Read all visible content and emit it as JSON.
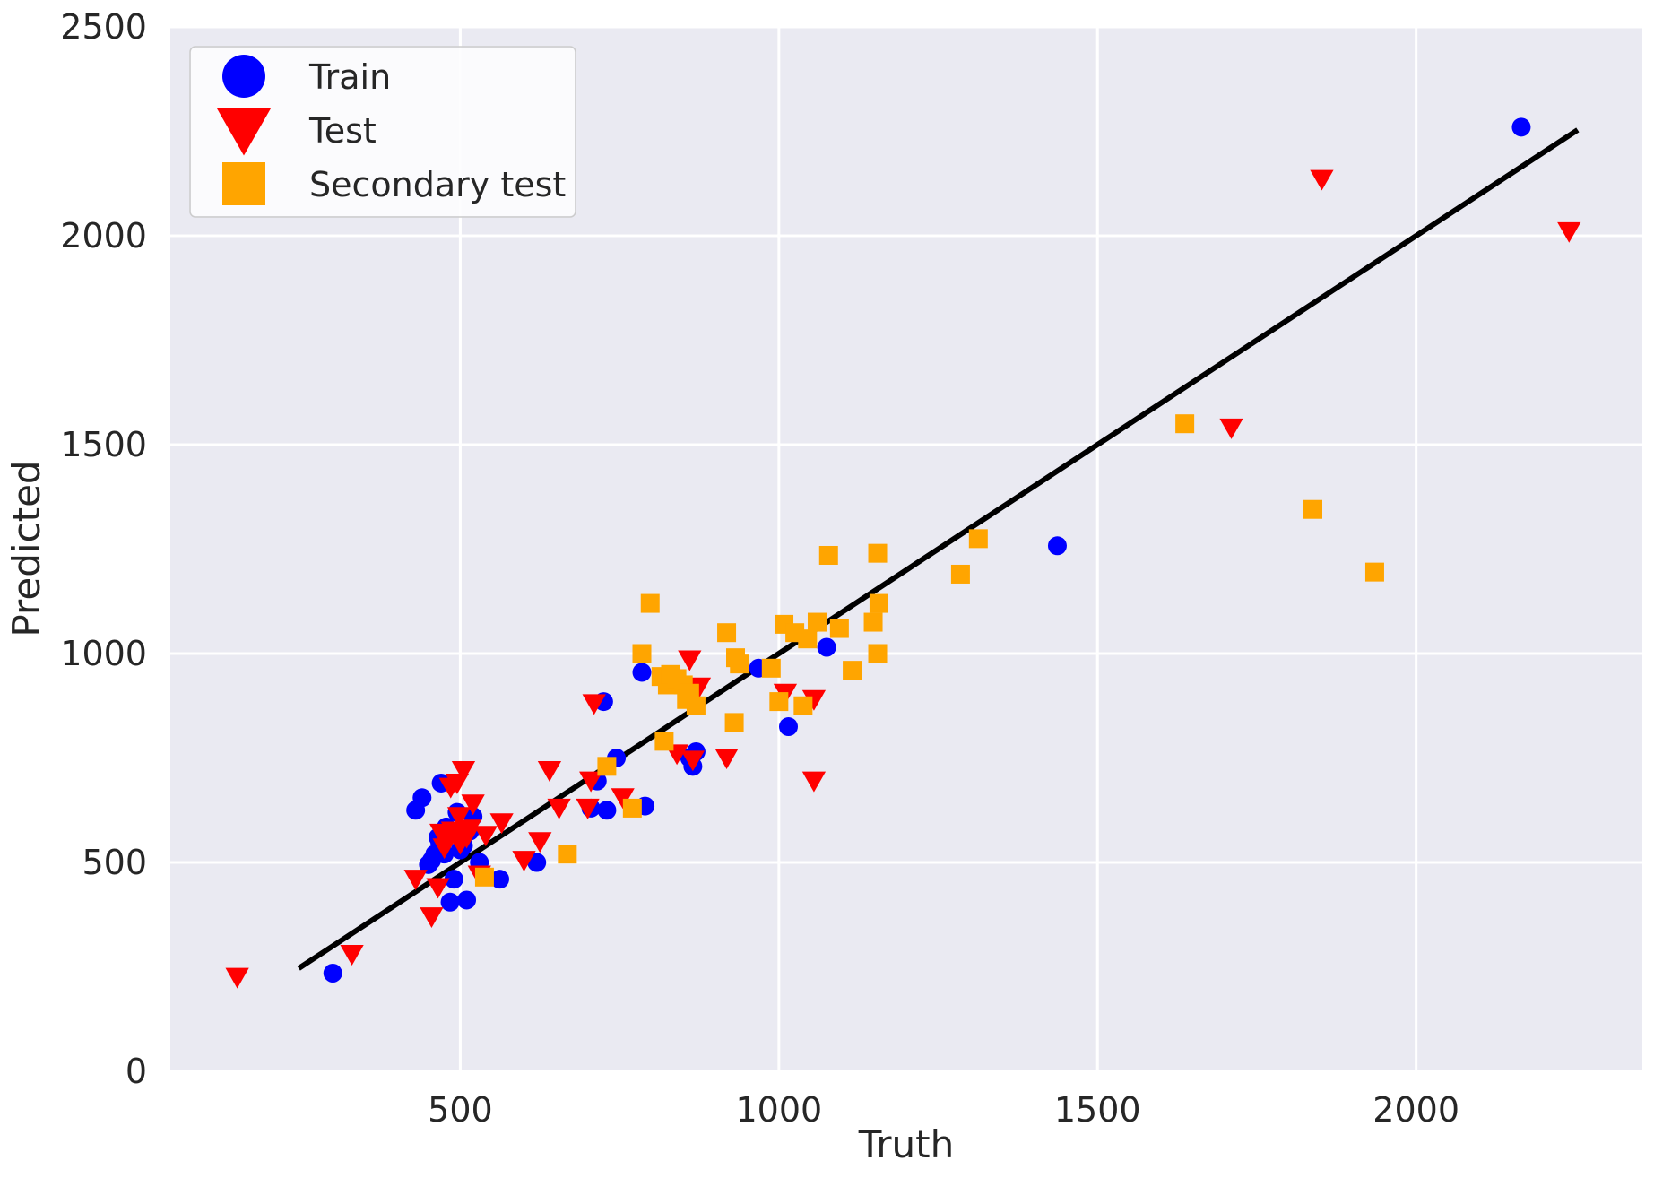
{
  "chart_data": {
    "type": "scatter",
    "xlabel": "Truth",
    "ylabel": "Predicted",
    "xlim": [
      45,
      2355
    ],
    "ylim": [
      0,
      2500
    ],
    "xticks": [
      500,
      1000,
      1500,
      2000
    ],
    "yticks": [
      0,
      500,
      1000,
      1500,
      2000,
      2500
    ],
    "grid": true,
    "legend_position": "top-left",
    "reference_line": {
      "x": [
        250,
        2250
      ],
      "y": [
        250,
        2250
      ],
      "color": "#000000"
    },
    "series": [
      {
        "name": "Train",
        "marker": "circle",
        "color": "#0000ff",
        "points": [
          [
            300,
            235
          ],
          [
            430,
            625
          ],
          [
            440,
            655
          ],
          [
            450,
            495
          ],
          [
            455,
            505
          ],
          [
            460,
            520
          ],
          [
            465,
            560
          ],
          [
            468,
            545
          ],
          [
            470,
            690
          ],
          [
            475,
            520
          ],
          [
            478,
            585
          ],
          [
            480,
            570
          ],
          [
            484,
            405
          ],
          [
            490,
            460
          ],
          [
            495,
            620
          ],
          [
            500,
            530
          ],
          [
            505,
            540
          ],
          [
            510,
            410
          ],
          [
            515,
            575
          ],
          [
            520,
            610
          ],
          [
            530,
            500
          ],
          [
            562,
            460
          ],
          [
            620,
            500
          ],
          [
            705,
            630
          ],
          [
            715,
            695
          ],
          [
            725,
            885
          ],
          [
            730,
            625
          ],
          [
            745,
            750
          ],
          [
            785,
            955
          ],
          [
            790,
            635
          ],
          [
            860,
            750
          ],
          [
            865,
            730
          ],
          [
            870,
            765
          ],
          [
            968,
            965
          ],
          [
            1015,
            825
          ],
          [
            1075,
            1015
          ],
          [
            1437,
            1258
          ],
          [
            2165,
            2260
          ]
        ]
      },
      {
        "name": "Test",
        "marker": "triangle-down",
        "color": "#ff0000",
        "points": [
          [
            150,
            225
          ],
          [
            330,
            280
          ],
          [
            430,
            460
          ],
          [
            455,
            370
          ],
          [
            465,
            440
          ],
          [
            470,
            570
          ],
          [
            475,
            535
          ],
          [
            480,
            555
          ],
          [
            485,
            680
          ],
          [
            488,
            575
          ],
          [
            492,
            565
          ],
          [
            495,
            690
          ],
          [
            498,
            610
          ],
          [
            500,
            545
          ],
          [
            505,
            720
          ],
          [
            510,
            560
          ],
          [
            515,
            580
          ],
          [
            520,
            640
          ],
          [
            530,
            470
          ],
          [
            540,
            565
          ],
          [
            565,
            595
          ],
          [
            600,
            505
          ],
          [
            625,
            550
          ],
          [
            640,
            720
          ],
          [
            655,
            630
          ],
          [
            700,
            630
          ],
          [
            705,
            695
          ],
          [
            710,
            880
          ],
          [
            755,
            655
          ],
          [
            825,
            940
          ],
          [
            840,
            760
          ],
          [
            860,
            985
          ],
          [
            865,
            745
          ],
          [
            875,
            920
          ],
          [
            918,
            750
          ],
          [
            1010,
            905
          ],
          [
            1055,
            695
          ],
          [
            1055,
            890
          ],
          [
            1710,
            1540
          ],
          [
            1852,
            2135
          ],
          [
            2240,
            2010
          ]
        ]
      },
      {
        "name": "Secondary test",
        "marker": "square",
        "color": "#ffa500",
        "points": [
          [
            538,
            465
          ],
          [
            668,
            520
          ],
          [
            730,
            730
          ],
          [
            770,
            630
          ],
          [
            785,
            1000
          ],
          [
            798,
            1120
          ],
          [
            815,
            945
          ],
          [
            820,
            790
          ],
          [
            825,
            925
          ],
          [
            830,
            950
          ],
          [
            840,
            940
          ],
          [
            850,
            925
          ],
          [
            855,
            890
          ],
          [
            860,
            905
          ],
          [
            870,
            875
          ],
          [
            918,
            1050
          ],
          [
            930,
            835
          ],
          [
            932,
            990
          ],
          [
            938,
            975
          ],
          [
            988,
            965
          ],
          [
            1000,
            885
          ],
          [
            1008,
            1070
          ],
          [
            1025,
            1050
          ],
          [
            1038,
            875
          ],
          [
            1045,
            1035
          ],
          [
            1060,
            1075
          ],
          [
            1078,
            1235
          ],
          [
            1095,
            1060
          ],
          [
            1115,
            960
          ],
          [
            1148,
            1075
          ],
          [
            1155,
            1240
          ],
          [
            1155,
            1000
          ],
          [
            1157,
            1120
          ],
          [
            1285,
            1190
          ],
          [
            1313,
            1275
          ],
          [
            1637,
            1550
          ],
          [
            1838,
            1345
          ],
          [
            1935,
            1195
          ]
        ]
      }
    ]
  }
}
